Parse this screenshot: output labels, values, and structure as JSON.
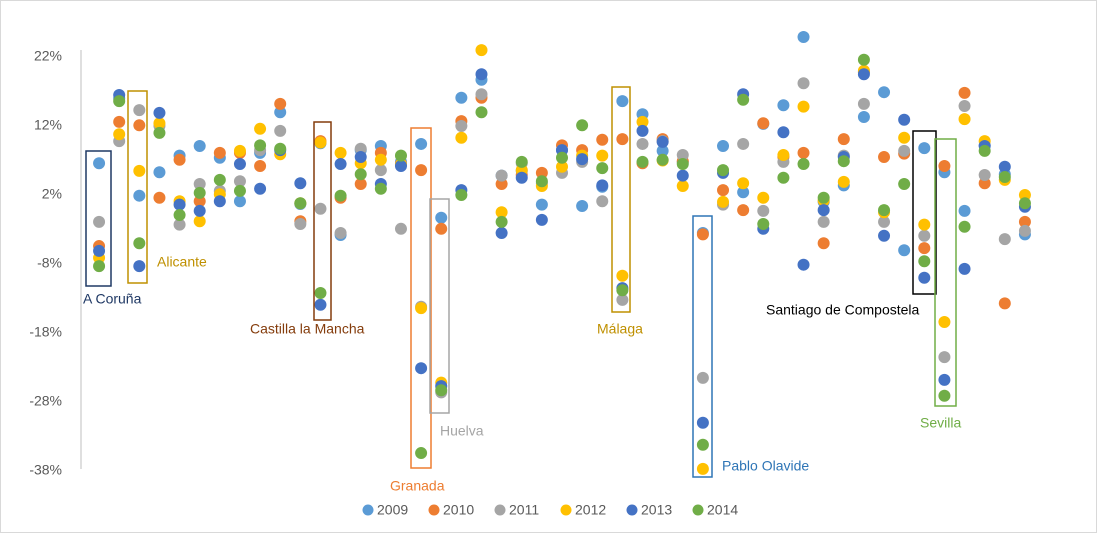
{
  "chart_data": {
    "type": "scatter",
    "categories": [
      null,
      null,
      null,
      null,
      null,
      null,
      null,
      null,
      null,
      null,
      null,
      null,
      null,
      null,
      null,
      null,
      null,
      null,
      null,
      null,
      null,
      null,
      null,
      null,
      null,
      null,
      null,
      null,
      null,
      null,
      null,
      null,
      null,
      null,
      null,
      null,
      null,
      null,
      null,
      null,
      null,
      null,
      null,
      null,
      null,
      null,
      null
    ],
    "ylim": [
      -38,
      26
    ],
    "yticks": [
      {
        "value": -38,
        "label": "-38%"
      },
      {
        "value": -28,
        "label": "-28%"
      },
      {
        "value": -18,
        "label": "-18%"
      },
      {
        "value": -8,
        "label": "-8%"
      },
      {
        "value": 2,
        "label": "2%"
      },
      {
        "value": 12,
        "label": "12%"
      },
      {
        "value": 22,
        "label": "22%"
      }
    ],
    "grid": false,
    "legend": "bottom",
    "series": [
      {
        "name": "2009",
        "color": "#5b9bd5",
        "values": [
          6.6,
          16.0,
          1.9,
          5.3,
          7.7,
          9.1,
          7.4,
          1.1,
          8.1,
          14.0,
          0.7,
          9.5,
          -3.8,
          8.5,
          9.1,
          6.8,
          9.4,
          -1.3,
          16.1,
          18.7,
          4.8,
          5.5,
          0.6,
          8.5,
          0.4,
          3.2,
          15.6,
          13.7,
          8.4,
          6.8,
          -3.5,
          9.1,
          2.4,
          12.3,
          15.0,
          24.9,
          1.0,
          3.4,
          13.3,
          16.9,
          -6.0,
          8.8,
          5.3,
          -0.3,
          9.2,
          5.0,
          -3.7
        ]
      },
      {
        "name": "2010",
        "color": "#ed7d31",
        "values": [
          -5.4,
          12.6,
          12.1,
          1.6,
          7.1,
          1.1,
          8.1,
          8.1,
          6.2,
          15.2,
          -1.8,
          9.8,
          1.6,
          3.6,
          8.1,
          6.5,
          5.6,
          -2.9,
          12.7,
          16.1,
          3.6,
          4.9,
          5.2,
          9.2,
          8.5,
          10.0,
          10.1,
          6.6,
          10.1,
          6.9,
          -3.7,
          2.7,
          -0.2,
          12.4,
          7.5,
          8.1,
          -5.0,
          10.1,
          19.8,
          7.5,
          8.0,
          -5.7,
          6.2,
          16.8,
          3.7,
          -13.7,
          -1.9
        ]
      },
      {
        "name": "2011",
        "color": "#a5a5a5",
        "values": [
          -1.9,
          9.8,
          14.3,
          12.0,
          -2.3,
          3.6,
          2.6,
          4.0,
          8.5,
          11.3,
          -2.2,
          0.0,
          -3.5,
          8.7,
          5.6,
          -2.9,
          -14.2,
          -26.6,
          12.0,
          16.6,
          4.8,
          6.6,
          3.7,
          5.2,
          6.8,
          1.1,
          -13.2,
          9.4,
          9.8,
          7.8,
          -24.5,
          0.6,
          9.4,
          -0.3,
          6.8,
          18.2,
          -1.9,
          7.7,
          15.2,
          -1.9,
          8.4,
          -3.9,
          -21.5,
          14.9,
          4.9,
          -4.4,
          -3.2
        ]
      },
      {
        "name": "2012",
        "color": "#ffc000",
        "values": [
          -7.1,
          10.8,
          5.5,
          12.4,
          1.1,
          -1.8,
          2.1,
          8.4,
          11.6,
          7.9,
          0.8,
          9.6,
          8.1,
          6.6,
          7.1,
          6.4,
          -14.4,
          -25.2,
          10.3,
          23.0,
          -0.5,
          5.6,
          3.3,
          6.1,
          7.7,
          7.7,
          -9.7,
          12.6,
          7.0,
          3.3,
          -37.7,
          1.0,
          3.7,
          1.6,
          7.8,
          14.8,
          1.2,
          3.9,
          20.0,
          -0.5,
          10.3,
          -2.3,
          -16.4,
          13.0,
          9.8,
          4.2,
          2.0
        ]
      },
      {
        "name": "2013",
        "color": "#4472c4",
        "values": [
          -6.1,
          16.5,
          -8.3,
          13.9,
          0.6,
          -0.3,
          1.1,
          6.5,
          2.9,
          8.5,
          3.7,
          -13.9,
          6.5,
          7.5,
          3.6,
          6.2,
          -23.1,
          -25.7,
          2.7,
          19.5,
          -3.5,
          4.5,
          -1.6,
          8.5,
          7.2,
          3.4,
          -11.5,
          11.3,
          9.7,
          4.8,
          -31.0,
          5.2,
          16.6,
          -2.9,
          11.1,
          -8.1,
          -0.2,
          7.5,
          19.5,
          -3.9,
          12.9,
          -10.0,
          -24.8,
          -8.7,
          9.1,
          6.1,
          0.3
        ]
      },
      {
        "name": "2014",
        "color": "#70ad47",
        "values": [
          -8.3,
          15.6,
          -5.0,
          11.0,
          -0.9,
          2.3,
          4.2,
          2.6,
          9.2,
          8.7,
          0.8,
          -12.2,
          1.9,
          5.0,
          2.9,
          7.7,
          -35.4,
          -26.3,
          2.0,
          14.0,
          -1.9,
          6.8,
          4.0,
          7.4,
          12.1,
          5.9,
          -11.8,
          6.8,
          7.1,
          6.5,
          -34.2,
          5.6,
          15.8,
          -2.2,
          4.5,
          6.5,
          1.6,
          6.9,
          21.6,
          -0.2,
          3.6,
          -7.6,
          -27.1,
          -2.6,
          8.4,
          4.6,
          0.8
        ]
      }
    ],
    "annotations": [
      {
        "text": "A Coruña",
        "color": "#1f3864"
      },
      {
        "text": "Alicante",
        "color": "#bf9000"
      },
      {
        "text": "Castilla la Mancha",
        "color": "#843c0c"
      },
      {
        "text": "Granada",
        "color": "#ed7d31"
      },
      {
        "text": "Huelva",
        "color": "#a5a5a5"
      },
      {
        "text": "Málaga",
        "color": "#bf9000"
      },
      {
        "text": "Pablo Olavide",
        "color": "#2e75b6"
      },
      {
        "text": "Santiago de Compostela",
        "color": "#000000"
      },
      {
        "text": "Sevilla",
        "color": "#70ad47"
      }
    ]
  }
}
